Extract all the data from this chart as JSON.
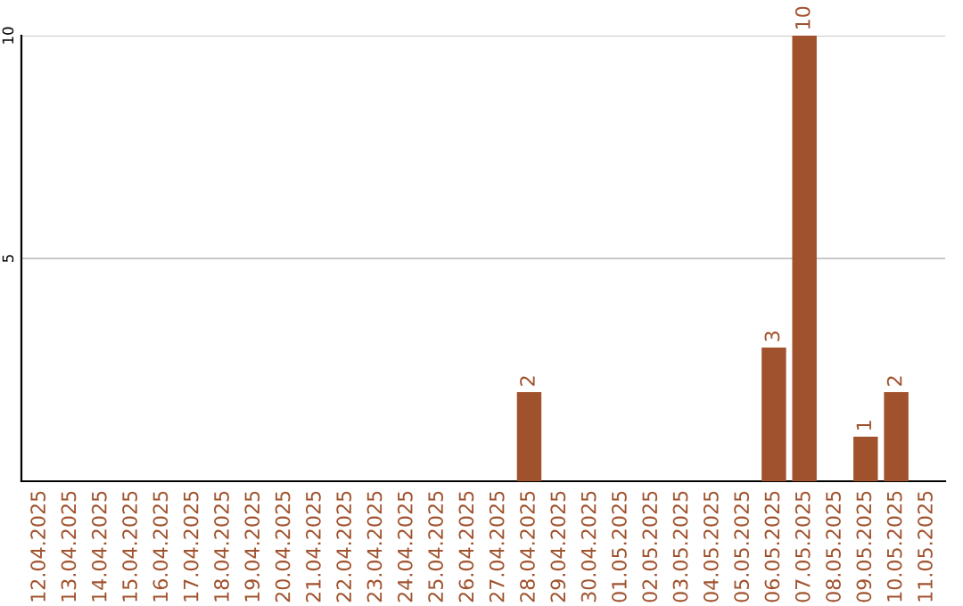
{
  "chart_data": {
    "type": "bar",
    "categories": [
      "12.04.2025",
      "13.04.2025",
      "14.04.2025",
      "15.04.2025",
      "16.04.2025",
      "17.04.2025",
      "18.04.2025",
      "19.04.2025",
      "20.04.2025",
      "21.04.2025",
      "22.04.2025",
      "23.04.2025",
      "24.04.2025",
      "25.04.2025",
      "26.04.2025",
      "27.04.2025",
      "28.04.2025",
      "29.04.2025",
      "30.04.2025",
      "01.05.2025",
      "02.05.2025",
      "03.05.2025",
      "04.05.2025",
      "05.05.2025",
      "06.05.2025",
      "07.05.2025",
      "08.05.2025",
      "09.05.2025",
      "10.05.2025",
      "11.05.2025"
    ],
    "values": [
      0,
      0,
      0,
      0,
      0,
      0,
      0,
      0,
      0,
      0,
      0,
      0,
      0,
      0,
      0,
      0,
      2,
      0,
      0,
      0,
      0,
      0,
      0,
      0,
      3,
      10,
      0,
      1,
      2,
      0
    ],
    "value_labels": [
      null,
      null,
      null,
      null,
      null,
      null,
      null,
      null,
      null,
      null,
      null,
      null,
      null,
      null,
      null,
      null,
      "2",
      null,
      null,
      null,
      null,
      null,
      null,
      null,
      "3",
      "10",
      null,
      "1",
      "2",
      null
    ],
    "color": "#a0522d",
    "ylim": [
      0,
      10
    ],
    "yticks": [
      5,
      10
    ],
    "grid": "y"
  }
}
